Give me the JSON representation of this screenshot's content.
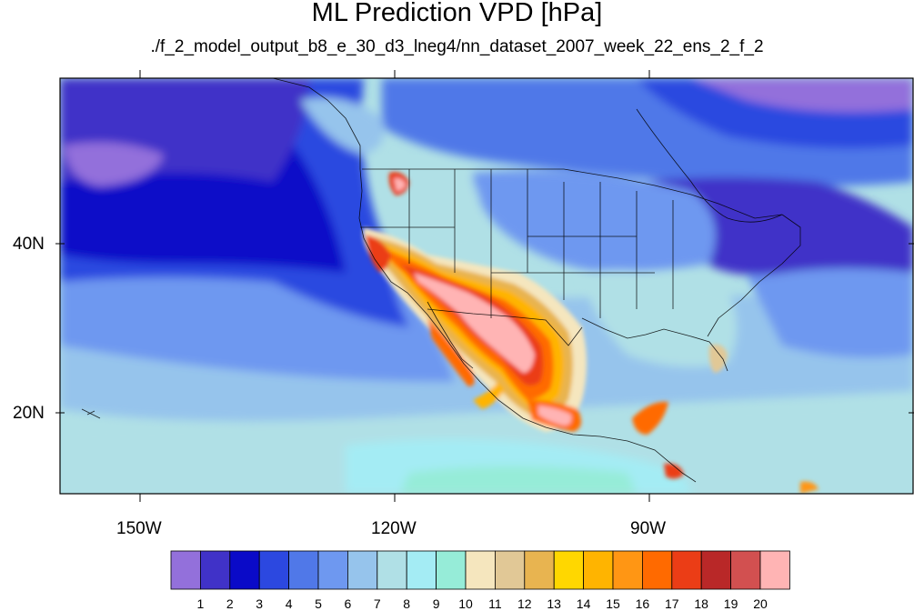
{
  "title": "ML Prediction VPD [hPa]",
  "subtitle": "./f_2_model_output_b8_e_30_d3_lneg4/nn_dataset_2007_week_22_ens_2_f_2",
  "axes": {
    "lat_ticks": [
      "40N",
      "20N"
    ],
    "lon_ticks": [
      "150W",
      "120W",
      "90W"
    ]
  },
  "colorbar": {
    "labels": [
      "1",
      "2",
      "3",
      "4",
      "5",
      "6",
      "7",
      "8",
      "9",
      "10",
      "11",
      "12",
      "13",
      "14",
      "15",
      "16",
      "17",
      "18",
      "19",
      "20"
    ],
    "colors": [
      "#9370db",
      "#4032c8",
      "#0a0ac8",
      "#2c48e0",
      "#5078e8",
      "#6e98f0",
      "#96c4ec",
      "#b0e0e6",
      "#a4ecf4",
      "#96ecd8",
      "#f5e6be",
      "#e1c896",
      "#e8b450",
      "#ffd700",
      "#ffb400",
      "#ff9614",
      "#ff6a00",
      "#eb3d16",
      "#b92828",
      "#d25050",
      "#ffb4b4"
    ]
  }
}
